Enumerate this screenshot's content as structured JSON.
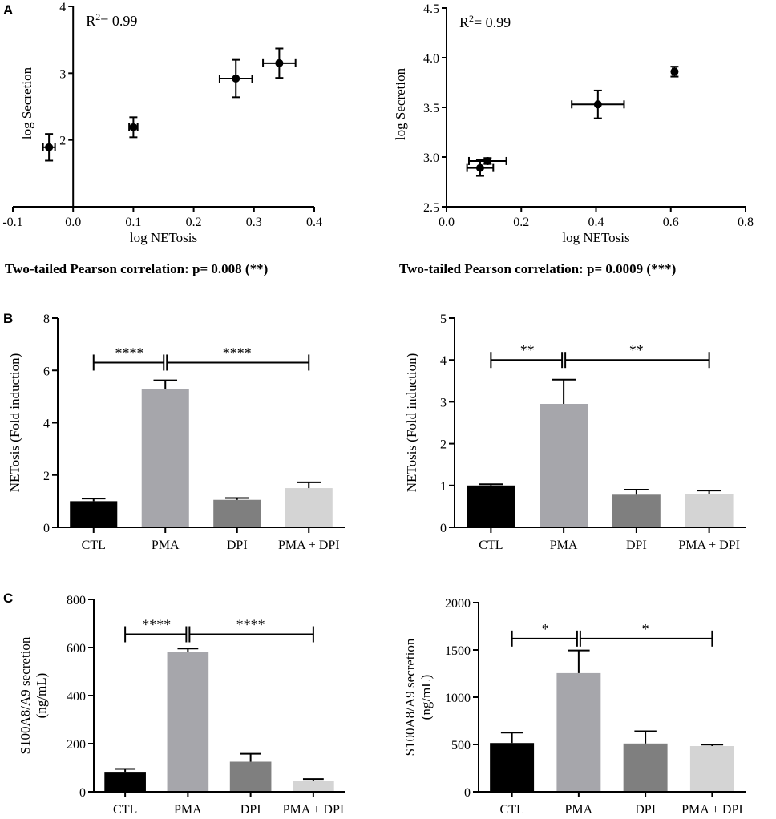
{
  "panel_letters": [
    "A",
    "B",
    "C"
  ],
  "chart_data": [
    {
      "id": "A1",
      "type": "scatter",
      "annotation_prefix": "R",
      "annotation_sup": "2",
      "annotation_value": "= 0.99",
      "xlabel": "log NETosis",
      "ylabel": "log Secretion",
      "xlim": [
        -0.1,
        0.4
      ],
      "ylim": [
        1,
        4
      ],
      "xticks": [
        -0.1,
        0.0,
        0.1,
        0.2,
        0.3,
        0.4
      ],
      "xtick_labels": [
        "-0.1",
        "0.0",
        "0.1",
        "0.2",
        "0.3",
        "0.4"
      ],
      "yticks": [
        2,
        3,
        4
      ],
      "ytick_labels": [
        "2",
        "3",
        "4"
      ],
      "points": [
        {
          "x": -0.04,
          "y": 1.89,
          "xerr": 0.01,
          "yerr": 0.2
        },
        {
          "x": 0.1,
          "y": 2.19,
          "xerr": 0.007,
          "yerr": 0.15
        },
        {
          "x": 0.27,
          "y": 2.92,
          "xerr": 0.027,
          "yerr": 0.28
        },
        {
          "x": 0.342,
          "y": 3.15,
          "xerr": 0.027,
          "yerr": 0.22
        }
      ],
      "caption": "Two-tailed Pearson correlation: p= 0.008 (**)"
    },
    {
      "id": "A2",
      "type": "scatter",
      "annotation_prefix": "R",
      "annotation_sup": "2",
      "annotation_value": "= 0.99",
      "xlabel": "log NETosis",
      "ylabel": "log Secretion",
      "xlim": [
        0.0,
        0.8
      ],
      "ylim": [
        2.5,
        4.5
      ],
      "xticks": [
        0.0,
        0.2,
        0.4,
        0.6,
        0.8
      ],
      "xtick_labels": [
        "0.0",
        "0.2",
        "0.4",
        "0.6",
        "0.8"
      ],
      "yticks": [
        2.5,
        3.0,
        3.5,
        4.0,
        4.5
      ],
      "ytick_labels": [
        "2.5",
        "3.0",
        "3.5",
        "4.0",
        "4.5"
      ],
      "points": [
        {
          "x": 0.09,
          "y": 2.89,
          "xerr": 0.035,
          "yerr": 0.08
        },
        {
          "x": 0.11,
          "y": 2.96,
          "xerr": 0.05,
          "yerr": 0.03
        },
        {
          "x": 0.405,
          "y": 3.53,
          "xerr": 0.07,
          "yerr": 0.14
        },
        {
          "x": 0.61,
          "y": 3.86,
          "xerr": 0.005,
          "yerr": 0.05
        }
      ],
      "caption": "Two-tailed Pearson correlation: p= 0.0009 (***)"
    },
    {
      "id": "B1",
      "type": "bar",
      "ylabel": "NETosis (Fold induction)",
      "categories": [
        "CTL",
        "PMA",
        "DPI",
        "PMA + DPI"
      ],
      "values": [
        1.0,
        5.3,
        1.05,
        1.5
      ],
      "errors": [
        0.1,
        0.32,
        0.07,
        0.22
      ],
      "colors": [
        "#000000",
        "#a6a6ab",
        "#7f7f7f",
        "#d4d4d4"
      ],
      "ylim": [
        0,
        8
      ],
      "yticks": [
        0,
        2,
        4,
        6,
        8
      ],
      "ytick_labels": [
        "0",
        "2",
        "4",
        "6",
        "8"
      ],
      "significance": {
        "left": "****",
        "right": "****",
        "bracket_value": 6.3
      }
    },
    {
      "id": "B2",
      "type": "bar",
      "ylabel": "NETosis (Fold induction)",
      "categories": [
        "CTL",
        "PMA",
        "DPI",
        "PMA + DPI"
      ],
      "values": [
        1.0,
        2.95,
        0.78,
        0.8
      ],
      "errors": [
        0.03,
        0.58,
        0.12,
        0.08
      ],
      "colors": [
        "#000000",
        "#a6a6ab",
        "#7f7f7f",
        "#d4d4d4"
      ],
      "ylim": [
        0,
        5
      ],
      "yticks": [
        0,
        1,
        2,
        3,
        4,
        5
      ],
      "ytick_labels": [
        "0",
        "1",
        "2",
        "3",
        "4",
        "5"
      ],
      "significance": {
        "left": "**",
        "right": "**",
        "bracket_value": 4.0
      }
    },
    {
      "id": "C1",
      "type": "bar",
      "ylabel_line1": "S100A8/A9 secretion",
      "ylabel_line2": "(ng/mL)",
      "categories": [
        "CTL",
        "PMA",
        "DPI",
        "PMA + DPI"
      ],
      "values": [
        83,
        583,
        125,
        45
      ],
      "errors": [
        12,
        13,
        33,
        8
      ],
      "colors": [
        "#000000",
        "#a6a6ab",
        "#7f7f7f",
        "#d4d4d4"
      ],
      "ylim": [
        0,
        800
      ],
      "yticks": [
        0,
        200,
        400,
        600,
        800
      ],
      "ytick_labels": [
        "0",
        "200",
        "400",
        "600",
        "800"
      ],
      "significance": {
        "left": "****",
        "right": "****",
        "bracket_value": 655
      }
    },
    {
      "id": "C2",
      "type": "bar",
      "ylabel_line1": "S100A8/A9 secretion",
      "ylabel_line2": "(ng/mL)",
      "categories": [
        "CTL",
        "PMA",
        "DPI",
        "PMA + DPI"
      ],
      "values": [
        515,
        1255,
        510,
        483
      ],
      "errors": [
        110,
        240,
        130,
        15
      ],
      "colors": [
        "#000000",
        "#a6a6ab",
        "#7f7f7f",
        "#d4d4d4"
      ],
      "ylim": [
        0,
        2000
      ],
      "yticks": [
        0,
        500,
        1000,
        1500,
        2000
      ],
      "ytick_labels": [
        "0",
        "500",
        "1000",
        "1500",
        "2000"
      ],
      "significance": {
        "left": "*",
        "right": "*",
        "bracket_value": 1620
      }
    }
  ]
}
